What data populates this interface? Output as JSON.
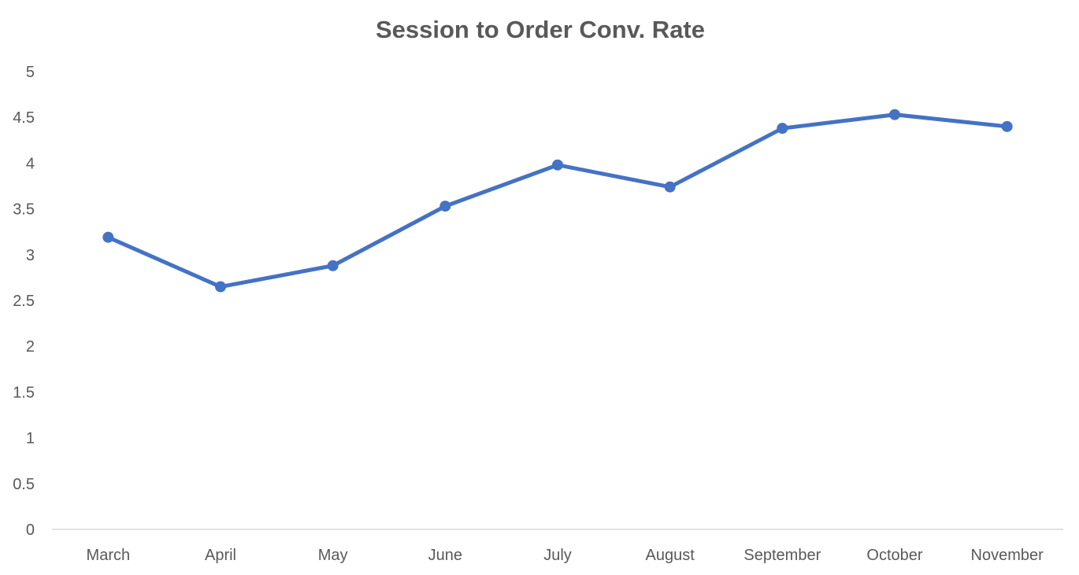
{
  "chart_data": {
    "type": "line",
    "title": "Session to Order Conv. Rate",
    "xlabel": "",
    "ylabel": "",
    "categories": [
      "March",
      "April",
      "May",
      "June",
      "July",
      "August",
      "September",
      "October",
      "November"
    ],
    "series": [
      {
        "values": [
          3.19,
          2.65,
          2.88,
          3.53,
          3.98,
          3.74,
          4.38,
          4.53,
          4.4
        ],
        "color": "#4472C4"
      }
    ],
    "ylim": [
      0,
      5
    ],
    "yticks": [
      "0",
      "0.5",
      "1",
      "1.5",
      "2",
      "2.5",
      "3",
      "3.5",
      "4",
      "4.5",
      "5"
    ],
    "grid": false,
    "legend": "none",
    "markers": true,
    "axis_color": "#D9D9D9",
    "text_color": "#595959"
  }
}
